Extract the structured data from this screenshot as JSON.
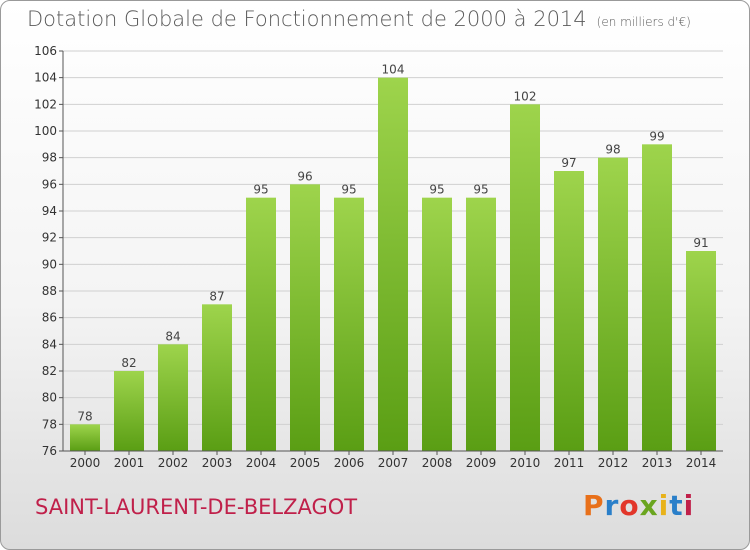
{
  "title": "Dotation Globale de Fonctionnement de 2000 à 2014",
  "unit_note": "(en milliers d'€)",
  "municipality": "SAINT-LAURENT-DE-BELZAGOT",
  "logo": {
    "text": "Proxiti",
    "letter_colors": [
      "#e8701a",
      "#2a7fc9",
      "#e2362a",
      "#6aa51f",
      "#e8b21a",
      "#2a7fc9",
      "#c0204a"
    ]
  },
  "colors": {
    "bar_top": "#9ed44c",
    "bar_bottom": "#5a9e14",
    "grid": "#d0d0d0",
    "axis": "#555555"
  },
  "chart_data": {
    "type": "bar",
    "title": "Dotation Globale de Fonctionnement de 2000 à 2014",
    "xlabel": "",
    "ylabel": "",
    "ylim": [
      76,
      106
    ],
    "yticks": [
      76,
      78,
      80,
      82,
      84,
      86,
      88,
      90,
      92,
      94,
      96,
      98,
      100,
      102,
      104,
      106
    ],
    "grid": true,
    "categories": [
      "2000",
      "2001",
      "2002",
      "2003",
      "2004",
      "2005",
      "2006",
      "2007",
      "2008",
      "2009",
      "2010",
      "2011",
      "2012",
      "2013",
      "2014"
    ],
    "values": [
      78,
      82,
      84,
      87,
      95,
      96,
      95,
      104,
      95,
      95,
      102,
      97,
      98,
      99,
      91
    ]
  }
}
